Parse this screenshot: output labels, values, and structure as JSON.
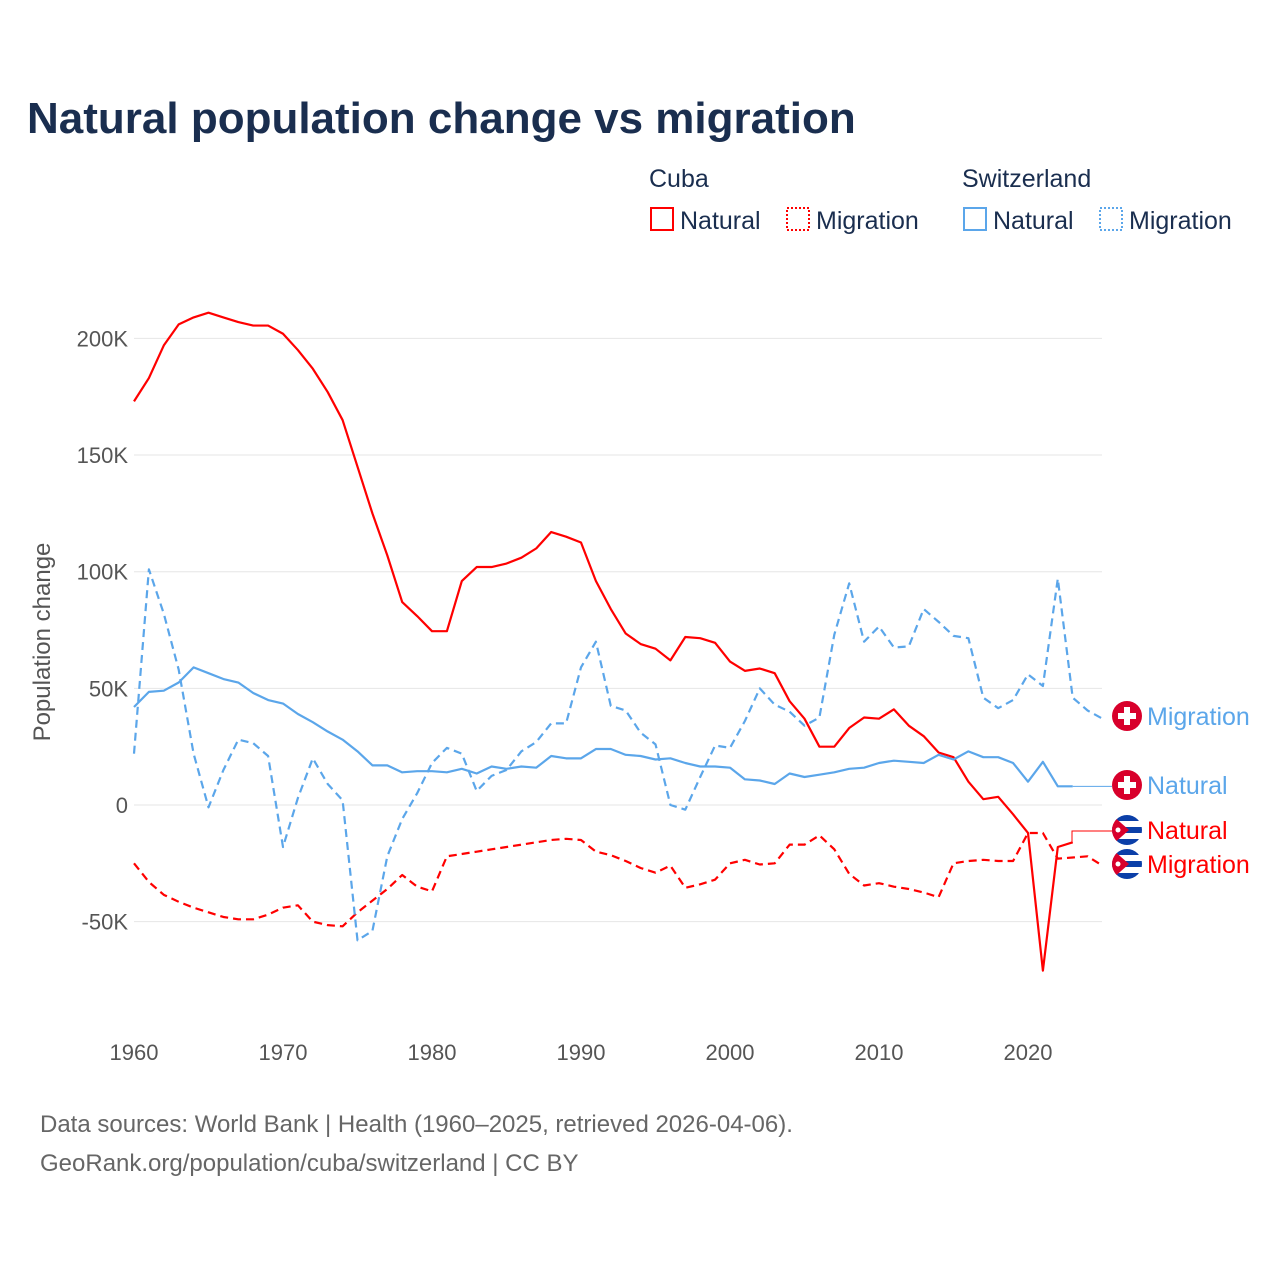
{
  "title": "Natural population change vs migration",
  "legend": {
    "groups": [
      {
        "country": "Cuba",
        "items": [
          "Natural",
          "Migration"
        ]
      },
      {
        "country": "Switzerland",
        "items": [
          "Natural",
          "Migration"
        ]
      }
    ]
  },
  "footer": {
    "line1": "Data sources: World Bank | Health (1960–2025, retrieved 2026-04-06).",
    "line2": "GeoRank.org/population/cuba/switzerland | CC BY"
  },
  "colors": {
    "cuba": "#ff0000",
    "switzerland": "#5ba6ea",
    "flag_red": "#d8002b",
    "flag_blue": "#0b3fa8"
  },
  "chart_data": {
    "type": "line",
    "title": "Natural population change vs migration",
    "xlabel": "",
    "ylabel": "Population change",
    "xlim": [
      1960,
      2025
    ],
    "ylim": [
      -80000,
      220000
    ],
    "x_ticks": [
      1960,
      1970,
      1980,
      1990,
      2000,
      2010,
      2020
    ],
    "x_tick_labels": [
      "1960",
      "1970",
      "1980",
      "1990",
      "2000",
      "2010",
      "2020"
    ],
    "y_ticks": [
      -50000,
      0,
      50000,
      100000,
      150000,
      200000
    ],
    "y_tick_labels": [
      "-50K",
      "0",
      "50K",
      "100K",
      "150K",
      "200K"
    ],
    "grid": true,
    "legend_position": "top-right",
    "series": [
      {
        "name": "Cuba Natural",
        "end_label": "Natural",
        "country": "cuba",
        "dash": "solid",
        "start": 1960,
        "values_k": [
          173,
          183,
          197,
          206,
          209,
          211,
          209,
          207,
          205.5,
          205.5,
          202,
          195,
          187,
          177,
          165,
          145,
          125,
          107,
          87,
          81,
          74.5,
          74.5,
          96,
          102,
          102,
          103.5,
          106,
          110,
          117,
          115,
          112.5,
          96,
          84,
          73.5,
          69,
          67,
          62,
          72,
          71.5,
          69.5,
          61.5,
          57.5,
          58.5,
          56.5,
          44.5,
          37,
          25,
          25,
          33,
          37.5,
          37,
          41,
          34,
          29.5,
          22.5,
          20.5,
          10,
          2.5,
          3.5,
          -4,
          -12,
          -71,
          -18,
          -16
        ]
      },
      {
        "name": "Cuba Migration",
        "end_label": "Migration",
        "country": "cuba",
        "dash": "dashed",
        "start": 1960,
        "values_k": [
          -25,
          -33,
          -38.5,
          -41.5,
          -44,
          -46,
          -48,
          -49,
          -49,
          -47,
          -44,
          -43,
          -50,
          -51.5,
          -52,
          -46,
          -41,
          -36,
          -30,
          -35,
          -37,
          -22,
          -21,
          -20,
          -19,
          -18,
          -17,
          -16,
          -15,
          -14.5,
          -15,
          -20,
          -21.5,
          -24,
          -27,
          -29,
          -26,
          -35.5,
          -34,
          -32,
          -25,
          -23.5,
          -25.5,
          -25,
          -17,
          -17,
          -13,
          -19,
          -29.5,
          -34.5,
          -33.5,
          -35,
          -36,
          -37.5,
          -39.5,
          -25,
          -24,
          -23.5,
          -24,
          -24,
          -12,
          -12,
          -23,
          -22.5,
          -22,
          -26
        ]
      },
      {
        "name": "Switzerland Natural",
        "end_label": "Natural",
        "country": "switzerland",
        "dash": "solid",
        "start": 1960,
        "values_k": [
          42,
          48.5,
          49,
          52.5,
          59,
          56.5,
          54,
          52.5,
          48,
          45,
          43.5,
          39,
          35.5,
          31.5,
          28,
          23,
          17,
          17,
          14,
          14.5,
          14.5,
          14,
          15.5,
          13.5,
          16.5,
          15.5,
          16.5,
          16,
          21,
          20,
          20,
          24,
          24,
          21.5,
          21,
          19.5,
          20,
          18,
          16.5,
          16.5,
          16,
          11,
          10.5,
          9,
          13.5,
          12,
          13,
          14,
          15.5,
          16,
          18,
          19,
          18.5,
          18,
          21.5,
          19.5,
          23,
          20.5,
          20.5,
          18,
          10,
          18.5,
          8,
          8
        ]
      },
      {
        "name": "Switzerland Migration",
        "end_label": "Migration",
        "country": "switzerland",
        "dash": "dashed",
        "start": 1960,
        "values_k": [
          22,
          101,
          82,
          58,
          22,
          -1,
          15,
          28,
          26.5,
          21,
          -18,
          3,
          20,
          9,
          2,
          -58,
          -54,
          -22,
          -6,
          5,
          18,
          24.5,
          22,
          6,
          12.5,
          15,
          23,
          27,
          35,
          35,
          59,
          70,
          42.5,
          40.5,
          31,
          26,
          0,
          -2,
          12,
          25.5,
          24.5,
          36,
          50,
          43,
          40,
          34,
          37.5,
          73,
          95,
          70,
          76.5,
          67.5,
          68,
          84,
          78.5,
          72.5,
          71.5,
          46,
          41.5,
          45,
          56,
          51,
          97,
          46,
          40.5,
          37
        ]
      }
    ]
  }
}
